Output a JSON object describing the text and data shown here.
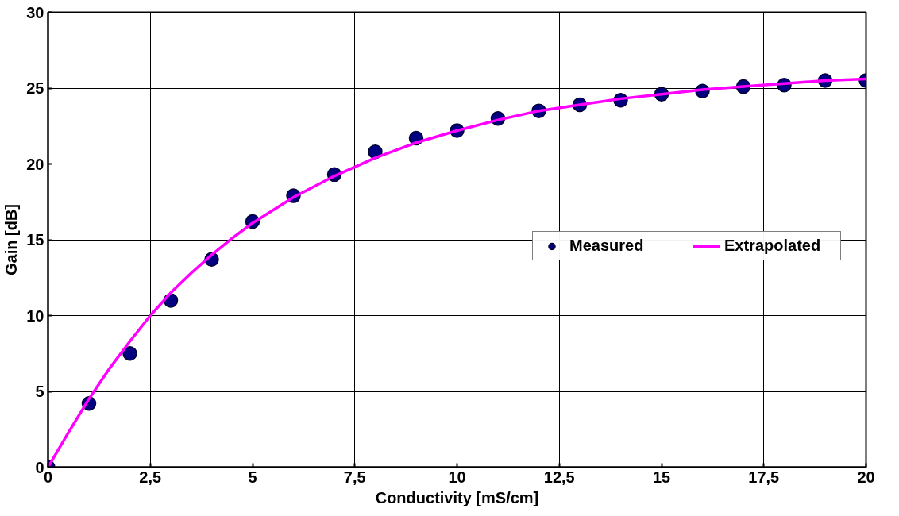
{
  "chart_data": {
    "type": "scatter",
    "xlabel": "Conductivity [mS/cm]",
    "ylabel": "Gain [dB]",
    "xlim": [
      0,
      20
    ],
    "ylim": [
      0,
      30
    ],
    "xticks": [
      0,
      {
        "value": 2.5,
        "label": "2,5"
      },
      5,
      {
        "value": 7.5,
        "label": "7,5"
      },
      10,
      {
        "value": 12.5,
        "label": "12,5"
      },
      15,
      {
        "value": 17.5,
        "label": "17,5"
      },
      20
    ],
    "yticks": [
      0,
      5,
      10,
      15,
      20,
      25,
      30
    ],
    "grid": true,
    "legend": "right",
    "series": [
      {
        "name": "Measured",
        "marker": "circle",
        "color": "#000080",
        "x": [
          0,
          1,
          2,
          3,
          4,
          5,
          6,
          7,
          8,
          9,
          10,
          11,
          12,
          13,
          14,
          15,
          16,
          17,
          18,
          19,
          20
        ],
        "values": [
          0,
          4.2,
          7.5,
          11,
          13.7,
          16.2,
          17.9,
          19.3,
          20.8,
          21.7,
          22.2,
          23,
          23.5,
          23.9,
          24.2,
          24.6,
          24.8,
          25.1,
          25.2,
          25.5,
          25.5
        ]
      },
      {
        "name": "Extrapolated",
        "type": "line",
        "color": "#ff00ff",
        "line_style": "solid",
        "x": [
          0,
          0.5,
          1,
          1.5,
          2,
          2.5,
          3,
          3.5,
          4,
          4.5,
          5,
          6,
          7,
          7.5,
          8,
          9,
          10,
          11,
          12,
          13,
          14,
          15,
          16,
          17,
          18,
          19,
          20
        ],
        "values": [
          0,
          2.3,
          4.5,
          6.5,
          8.3,
          10,
          11.5,
          12.8,
          14,
          15.1,
          16.1,
          17.8,
          19.2,
          19.8,
          20.4,
          21.4,
          22.2,
          22.9,
          23.5,
          23.9,
          24.3,
          24.6,
          24.9,
          25.1,
          25.3,
          25.5,
          25.6
        ]
      }
    ]
  }
}
